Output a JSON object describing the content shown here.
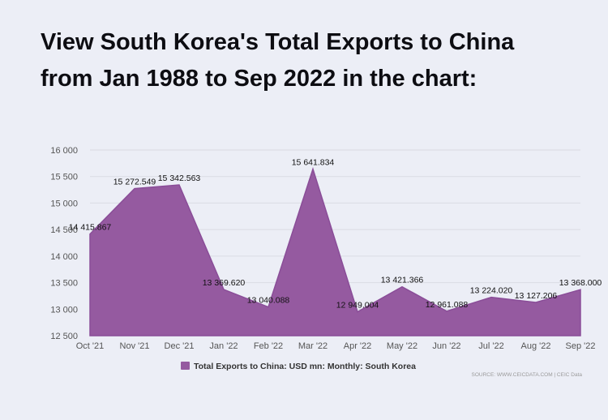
{
  "title": {
    "line1": "View South Korea's Total Exports to China",
    "line2": "from Jan 1988 to Sep 2022 in the chart:"
  },
  "source": "SOURCE: WWW.CEICDATA.COM | CEIC Data",
  "colors": {
    "area": "#955aa0",
    "line": "#8a4d98",
    "grid": "#dadbe3",
    "background": "#eceef6"
  },
  "chart_data": {
    "type": "area",
    "categories": [
      "Oct '21",
      "Nov '21",
      "Dec '21",
      "Jan '22",
      "Feb '22",
      "Mar '22",
      "Apr '22",
      "May '22",
      "Jun '22",
      "Jul '22",
      "Aug '22",
      "Sep '22"
    ],
    "series": [
      {
        "name": "Total Exports to China: USD mn: Monthly: South Korea",
        "values": [
          14415.867,
          15272.549,
          15342.563,
          13369.62,
          13040.088,
          15641.834,
          12949.004,
          13421.366,
          12961.088,
          13224.02,
          13127.206,
          13368.0
        ],
        "labels": [
          "14 415.867",
          "15 272.549",
          "15 342.563",
          "13 369.620",
          "13 040.088",
          "15 641.834",
          "12 949.004",
          "13 421.366",
          "12 961.088",
          "13 224.020",
          "13 127.206",
          "13 368.000"
        ]
      }
    ],
    "yticks": [
      "12 500",
      "13 000",
      "13 500",
      "14 000",
      "14 500",
      "15 000",
      "15 500",
      "16 000"
    ],
    "ylim": [
      12500,
      16000
    ],
    "grid": true,
    "legend_position": "bottom"
  }
}
